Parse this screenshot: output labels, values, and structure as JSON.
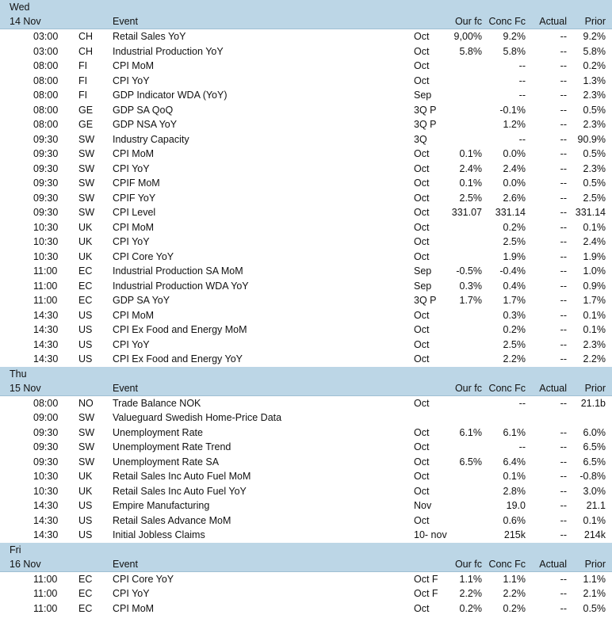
{
  "headers": {
    "event": "Event",
    "our_fc": "Our fc",
    "conc_fc": "Conc Fc",
    "actual": "Actual",
    "prior": "Prior"
  },
  "days": [
    {
      "day": "Wed",
      "date": "14 Nov",
      "rows": [
        {
          "time": "03:00",
          "country": "CH",
          "event": "Retail Sales YoY",
          "period": "Oct",
          "our_fc": "9,00%",
          "conc_fc": "9.2%",
          "actual": "--",
          "prior": "9.2%"
        },
        {
          "time": "03:00",
          "country": "CH",
          "event": "Industrial Production YoY",
          "period": "Oct",
          "our_fc": "5.8%",
          "conc_fc": "5.8%",
          "actual": "--",
          "prior": "5.8%"
        },
        {
          "time": "08:00",
          "country": "FI",
          "event": "CPI MoM",
          "period": "Oct",
          "our_fc": "",
          "conc_fc": "--",
          "actual": "--",
          "prior": "0.2%"
        },
        {
          "time": "08:00",
          "country": "FI",
          "event": "CPI YoY",
          "period": "Oct",
          "our_fc": "",
          "conc_fc": "--",
          "actual": "--",
          "prior": "1.3%"
        },
        {
          "time": "08:00",
          "country": "FI",
          "event": "GDP Indicator WDA (YoY)",
          "period": "Sep",
          "our_fc": "",
          "conc_fc": "--",
          "actual": "--",
          "prior": "2.3%"
        },
        {
          "time": "08:00",
          "country": "GE",
          "event": "GDP SA QoQ",
          "period": "3Q P",
          "our_fc": "",
          "conc_fc": "-0.1%",
          "actual": "--",
          "prior": "0.5%"
        },
        {
          "time": "08:00",
          "country": "GE",
          "event": "GDP NSA YoY",
          "period": "3Q P",
          "our_fc": "",
          "conc_fc": "1.2%",
          "actual": "--",
          "prior": "2.3%"
        },
        {
          "time": "09:30",
          "country": "SW",
          "event": "Industry Capacity",
          "period": "3Q",
          "our_fc": "",
          "conc_fc": "--",
          "actual": "--",
          "prior": "90.9%"
        },
        {
          "time": "09:30",
          "country": "SW",
          "event": "CPI MoM",
          "period": "Oct",
          "our_fc": "0.1%",
          "conc_fc": "0.0%",
          "actual": "--",
          "prior": "0.5%"
        },
        {
          "time": "09:30",
          "country": "SW",
          "event": "CPI YoY",
          "period": "Oct",
          "our_fc": "2.4%",
          "conc_fc": "2.4%",
          "actual": "--",
          "prior": "2.3%"
        },
        {
          "time": "09:30",
          "country": "SW",
          "event": "CPIF MoM",
          "period": "Oct",
          "our_fc": "0.1%",
          "conc_fc": "0.0%",
          "actual": "--",
          "prior": "0.5%"
        },
        {
          "time": "09:30",
          "country": "SW",
          "event": "CPIF YoY",
          "period": "Oct",
          "our_fc": "2.5%",
          "conc_fc": "2.6%",
          "actual": "--",
          "prior": "2.5%"
        },
        {
          "time": "09:30",
          "country": "SW",
          "event": "CPI Level",
          "period": "Oct",
          "our_fc": "331.07",
          "conc_fc": "331.14",
          "actual": "--",
          "prior": "331.14"
        },
        {
          "time": "10:30",
          "country": "UK",
          "event": "CPI MoM",
          "period": "Oct",
          "our_fc": "",
          "conc_fc": "0.2%",
          "actual": "--",
          "prior": "0.1%"
        },
        {
          "time": "10:30",
          "country": "UK",
          "event": "CPI YoY",
          "period": "Oct",
          "our_fc": "",
          "conc_fc": "2.5%",
          "actual": "--",
          "prior": "2.4%"
        },
        {
          "time": "10:30",
          "country": "UK",
          "event": "CPI Core YoY",
          "period": "Oct",
          "our_fc": "",
          "conc_fc": "1.9%",
          "actual": "--",
          "prior": "1.9%"
        },
        {
          "time": "11:00",
          "country": "EC",
          "event": "Industrial Production SA MoM",
          "period": "Sep",
          "our_fc": "-0.5%",
          "conc_fc": "-0.4%",
          "actual": "--",
          "prior": "1.0%"
        },
        {
          "time": "11:00",
          "country": "EC",
          "event": "Industrial Production WDA YoY",
          "period": "Sep",
          "our_fc": "0.3%",
          "conc_fc": "0.4%",
          "actual": "--",
          "prior": "0.9%"
        },
        {
          "time": "11:00",
          "country": "EC",
          "event": "GDP SA YoY",
          "period": "3Q P",
          "our_fc": "1.7%",
          "conc_fc": "1.7%",
          "actual": "--",
          "prior": "1.7%"
        },
        {
          "time": "14:30",
          "country": "US",
          "event": "CPI MoM",
          "period": "Oct",
          "our_fc": "",
          "conc_fc": "0.3%",
          "actual": "--",
          "prior": "0.1%"
        },
        {
          "time": "14:30",
          "country": "US",
          "event": "CPI Ex Food and Energy MoM",
          "period": "Oct",
          "our_fc": "",
          "conc_fc": "0.2%",
          "actual": "--",
          "prior": "0.1%"
        },
        {
          "time": "14:30",
          "country": "US",
          "event": "CPI YoY",
          "period": "Oct",
          "our_fc": "",
          "conc_fc": "2.5%",
          "actual": "--",
          "prior": "2.3%"
        },
        {
          "time": "14:30",
          "country": "US",
          "event": "CPI Ex Food and Energy YoY",
          "period": "Oct",
          "our_fc": "",
          "conc_fc": "2.2%",
          "actual": "--",
          "prior": "2.2%"
        }
      ]
    },
    {
      "day": "Thu",
      "date": "15 Nov",
      "rows": [
        {
          "time": "08:00",
          "country": "NO",
          "event": "Trade Balance NOK",
          "period": "Oct",
          "our_fc": "",
          "conc_fc": "--",
          "actual": "--",
          "prior": "21.1b"
        },
        {
          "time": "09:00",
          "country": "SW",
          "event": "Valueguard Swedish Home-Price Data",
          "period": "",
          "our_fc": "",
          "conc_fc": "",
          "actual": "",
          "prior": ""
        },
        {
          "time": "09:30",
          "country": "SW",
          "event": "Unemployment Rate",
          "period": "Oct",
          "our_fc": "6.1%",
          "conc_fc": "6.1%",
          "actual": "--",
          "prior": "6.0%"
        },
        {
          "time": "09:30",
          "country": "SW",
          "event": "Unemployment Rate Trend",
          "period": "Oct",
          "our_fc": "",
          "conc_fc": "--",
          "actual": "--",
          "prior": "6.5%"
        },
        {
          "time": "09:30",
          "country": "SW",
          "event": "Unemployment Rate SA",
          "period": "Oct",
          "our_fc": "6.5%",
          "conc_fc": "6.4%",
          "actual": "--",
          "prior": "6.5%"
        },
        {
          "time": "10:30",
          "country": "UK",
          "event": "Retail Sales Inc Auto Fuel MoM",
          "period": "Oct",
          "our_fc": "",
          "conc_fc": "0.1%",
          "actual": "--",
          "prior": "-0.8%"
        },
        {
          "time": "10:30",
          "country": "UK",
          "event": "Retail Sales Inc Auto Fuel YoY",
          "period": "Oct",
          "our_fc": "",
          "conc_fc": "2.8%",
          "actual": "--",
          "prior": "3.0%"
        },
        {
          "time": "14:30",
          "country": "US",
          "event": "Empire Manufacturing",
          "period": "Nov",
          "our_fc": "",
          "conc_fc": "19.0",
          "actual": "--",
          "prior": "21.1"
        },
        {
          "time": "14:30",
          "country": "US",
          "event": "Retail Sales Advance MoM",
          "period": "Oct",
          "our_fc": "",
          "conc_fc": "0.6%",
          "actual": "--",
          "prior": "0.1%"
        },
        {
          "time": "14:30",
          "country": "US",
          "event": "Initial Jobless Claims",
          "period": "10- nov",
          "our_fc": "",
          "conc_fc": "215k",
          "actual": "--",
          "prior": "214k"
        }
      ]
    },
    {
      "day": "Fri",
      "date": "16 Nov",
      "rows": [
        {
          "time": "11:00",
          "country": "EC",
          "event": "CPI Core YoY",
          "period": "Oct F",
          "our_fc": "1.1%",
          "conc_fc": "1.1%",
          "actual": "--",
          "prior": "1.1%"
        },
        {
          "time": "11:00",
          "country": "EC",
          "event": "CPI YoY",
          "period": "Oct F",
          "our_fc": "2.2%",
          "conc_fc": "2.2%",
          "actual": "--",
          "prior": "2.1%"
        },
        {
          "time": "11:00",
          "country": "EC",
          "event": "CPI MoM",
          "period": "Oct",
          "our_fc": "0.2%",
          "conc_fc": "0.2%",
          "actual": "--",
          "prior": "0.5%"
        }
      ]
    }
  ]
}
